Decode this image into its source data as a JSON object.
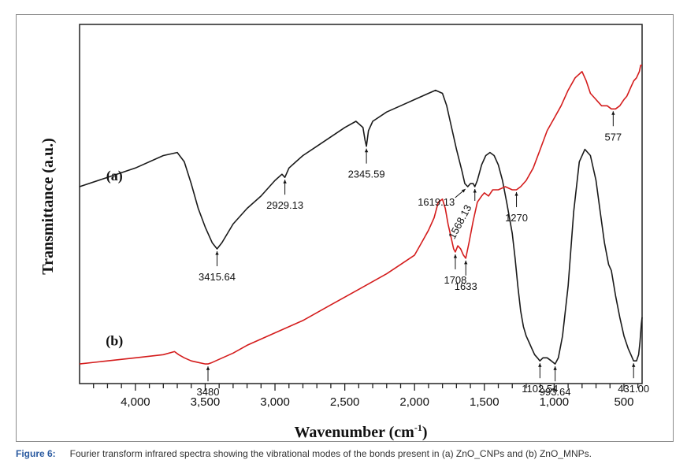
{
  "caption": {
    "label": "Figure 6:",
    "text": "Fourier transform infrared spectra showing the vibrational modes of the bonds present in (a) ZnO_CNPs and (b) ZnO_MNPs."
  },
  "chart_data": {
    "type": "line",
    "xlabel": "Wavenumber (cm",
    "xlabel_sup": "-1",
    "xlabel_close": ")",
    "ylabel": "Transmittance (a.u.)",
    "xlim": [
      4400,
      370
    ],
    "x_reversed": true,
    "x_ticks": [
      {
        "value": 4000,
        "label": "4,000"
      },
      {
        "value": 3500,
        "label": "3,500"
      },
      {
        "value": 3000,
        "label": "3,000"
      },
      {
        "value": 2500,
        "label": "2,500"
      },
      {
        "value": 2000,
        "label": "2,000"
      },
      {
        "value": 1500,
        "label": "1,500"
      },
      {
        "value": 1000,
        "label": "1,000"
      },
      {
        "value": 500,
        "label": "500"
      }
    ],
    "ylim": [
      0,
      100
    ],
    "grid": false,
    "series": [
      {
        "name": "(a)",
        "color": "#1a1a1a",
        "x": [
          4400,
          4200,
          4000,
          3800,
          3700,
          3650,
          3600,
          3550,
          3500,
          3450,
          3415,
          3380,
          3300,
          3200,
          3100,
          3000,
          2950,
          2929,
          2900,
          2850,
          2800,
          2700,
          2600,
          2500,
          2420,
          2370,
          2355,
          2345,
          2330,
          2300,
          2200,
          2100,
          2000,
          1900,
          1850,
          1800,
          1770,
          1740,
          1700,
          1660,
          1640,
          1619,
          1600,
          1580,
          1568,
          1550,
          1520,
          1490,
          1460,
          1430,
          1400,
          1370,
          1340,
          1300,
          1280,
          1260,
          1240,
          1220,
          1200,
          1180,
          1160,
          1140,
          1120,
          1102,
          1080,
          1050,
          1020,
          993,
          970,
          940,
          900,
          860,
          820,
          780,
          740,
          700,
          670,
          640,
          610,
          590,
          560,
          530,
          500,
          470,
          450,
          431,
          410,
          395,
          385,
          375,
          370
        ],
        "y": [
          60,
          63,
          66,
          70,
          71,
          68,
          61,
          53,
          47,
          42,
          40,
          42,
          48,
          53,
          57,
          62,
          64,
          63,
          66,
          68,
          70,
          73,
          76,
          79,
          81,
          79,
          75,
          73,
          78,
          81,
          84,
          86,
          88,
          90,
          91,
          90,
          86,
          80,
          72,
          65,
          61,
          60,
          61,
          61,
          60,
          62,
          67,
          70,
          71,
          70,
          67,
          62,
          55,
          45,
          37,
          28,
          20,
          15,
          12,
          10,
          8,
          6,
          5,
          4,
          5,
          5,
          4,
          3,
          5,
          12,
          28,
          52,
          68,
          72,
          70,
          62,
          52,
          42,
          35,
          33,
          25,
          18,
          12,
          8,
          6,
          4,
          4,
          6,
          10,
          16,
          18
        ]
      },
      {
        "name": "(b)",
        "color": "#d41c1c",
        "x": [
          4400,
          4200,
          4000,
          3800,
          3720,
          3690,
          3650,
          3600,
          3550,
          3500,
          3480,
          3450,
          3400,
          3300,
          3200,
          3000,
          2800,
          2600,
          2400,
          2200,
          2100,
          2000,
          1950,
          1900,
          1860,
          1830,
          1800,
          1780,
          1760,
          1740,
          1720,
          1708,
          1690,
          1670,
          1650,
          1633,
          1610,
          1580,
          1550,
          1520,
          1500,
          1470,
          1440,
          1400,
          1350,
          1300,
          1270,
          1240,
          1200,
          1150,
          1100,
          1050,
          1000,
          950,
          900,
          850,
          800,
          770,
          740,
          700,
          660,
          620,
          590,
          560,
          530,
          500,
          480,
          470,
          450,
          430,
          410,
          400,
          390,
          380,
          370
        ],
        "y": [
          3,
          4,
          5,
          6,
          7,
          6,
          5,
          4,
          3.5,
          3,
          3,
          3.5,
          4.5,
          6.5,
          9,
          13,
          17,
          22,
          27,
          32,
          35,
          38,
          42,
          46,
          50,
          55,
          56,
          53,
          48,
          44,
          40,
          39,
          41,
          40,
          38,
          37,
          42,
          49,
          55,
          57,
          58,
          57,
          59,
          59,
          60,
          59,
          59,
          60,
          62,
          66,
          72,
          78,
          82,
          86,
          91,
          95,
          97,
          94,
          90,
          88,
          86,
          86,
          85,
          85,
          86,
          88,
          89,
          90,
          92,
          94,
          95,
          96,
          97,
          99,
          99
        ]
      }
    ],
    "series_labels": [
      {
        "text": "(a)",
        "x": 4150,
        "y": 62
      },
      {
        "text": "(b)",
        "x": 4150,
        "y": 9
      }
    ],
    "annotations": [
      {
        "label": "3415.64",
        "x": 3415,
        "y": 40,
        "series": "(a)",
        "dir": "below"
      },
      {
        "label": "2929.13",
        "x": 2929,
        "y": 63,
        "series": "(a)",
        "dir": "below"
      },
      {
        "label": "2345.59",
        "x": 2345,
        "y": 73,
        "series": "(a)",
        "dir": "below"
      },
      {
        "label": "1619.13",
        "x": 1619,
        "y": 60,
        "series": "(a)",
        "dir": "below-left"
      },
      {
        "label": "1568.13",
        "x": 1568,
        "y": 60,
        "series": "(a)",
        "dir": "below-rot"
      },
      {
        "label": "1270",
        "x": 1270,
        "y": 59,
        "series": "(b)",
        "dir": "below"
      },
      {
        "label": "577",
        "x": 577,
        "y": 85,
        "series": "(b)",
        "dir": "below"
      },
      {
        "label": "1708",
        "x": 1708,
        "y": 39,
        "series": "(b)",
        "dir": "below"
      },
      {
        "label": "1633",
        "x": 1633,
        "y": 37,
        "series": "(b)",
        "dir": "below"
      },
      {
        "label": "3480",
        "x": 3480,
        "y": 3,
        "series": "(b)",
        "dir": "below"
      },
      {
        "label": "1102.54",
        "x": 1102,
        "y": 4,
        "series": "(a)",
        "dir": "below"
      },
      {
        "label": "993.64",
        "x": 993,
        "y": 3,
        "series": "(a)",
        "dir": "below"
      },
      {
        "label": "431.00",
        "x": 431,
        "y": 4,
        "series": "(a)",
        "dir": "below"
      }
    ]
  }
}
